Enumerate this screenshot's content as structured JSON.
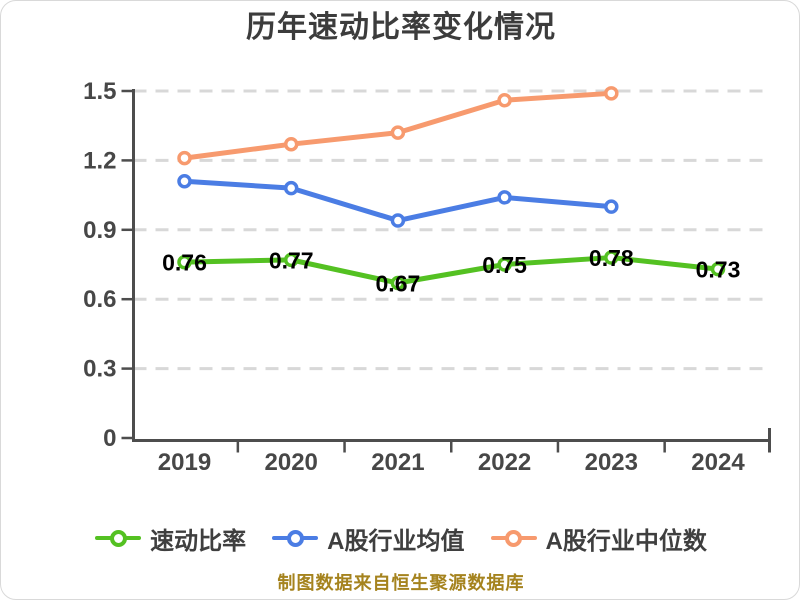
{
  "title": "历年速动比率变化情况",
  "caption": "制图数据来自恒生聚源数据库",
  "colors": {
    "background": "#ffffff",
    "title": "#3c3c3c",
    "axis": "#4d4d4d",
    "grid": "#d8d8d8",
    "tick_label": "#474747",
    "value_label": "#000000",
    "legend_text": "#3f3f3f",
    "caption": "#a5831e"
  },
  "chart_data": {
    "type": "line",
    "title": "历年速动比率变化情况",
    "categories": [
      "2019",
      "2020",
      "2021",
      "2022",
      "2023",
      "2024"
    ],
    "xlabel": "",
    "ylabel": "",
    "ylim": [
      0,
      1.5
    ],
    "yticks": [
      0,
      0.3,
      0.6,
      0.9,
      1.2,
      1.5
    ],
    "y_tick_labels": [
      "0",
      "0.3",
      "0.6",
      "0.9",
      "1.2",
      "1.5"
    ],
    "grid": "horizontal-dashed",
    "legend_position": "bottom",
    "series": [
      {
        "name": "速动比率",
        "color": "#54c122",
        "values": [
          0.76,
          0.77,
          0.67,
          0.75,
          0.78,
          0.73
        ],
        "point_labels": [
          "0.76",
          "0.77",
          "0.67",
          "0.75",
          "0.78",
          "0.73"
        ]
      },
      {
        "name": "A股行业均值",
        "color": "#4b7de4",
        "values": [
          1.11,
          1.08,
          0.94,
          1.04,
          1.0,
          null
        ],
        "point_labels": null
      },
      {
        "name": "A股行业中位数",
        "color": "#f79a6e",
        "values": [
          1.21,
          1.27,
          1.32,
          1.46,
          1.49,
          null
        ],
        "point_labels": null
      }
    ]
  }
}
